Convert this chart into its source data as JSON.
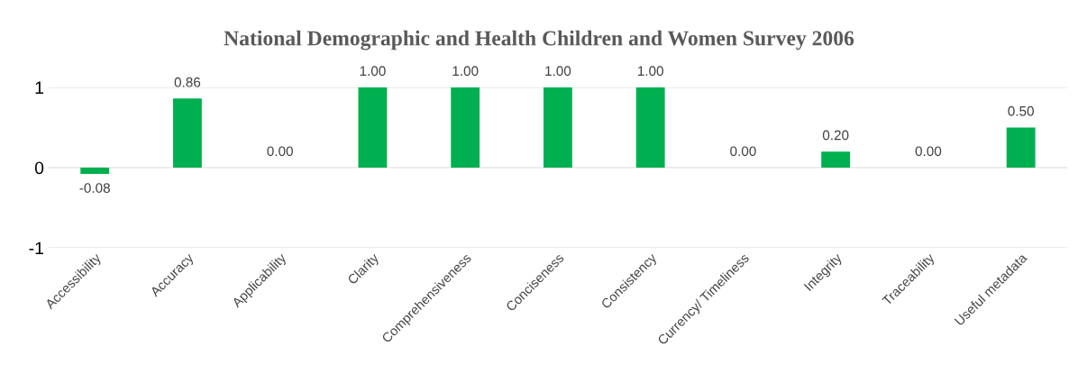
{
  "chart_data": {
    "type": "bar",
    "title": "National Demographic and Health Children and Women Survey 2006",
    "categories": [
      "Accessibility",
      "Accuracy",
      "Applicability",
      "Clarity",
      "Comprehensiveness",
      "Conciseness",
      "Consistency",
      "Currency/ Timeliness",
      "Integrity",
      "Traceability",
      "Useful metadata"
    ],
    "values": [
      -0.08,
      0.86,
      0.0,
      1.0,
      1.0,
      1.0,
      1.0,
      0.0,
      0.2,
      0.0,
      0.5
    ],
    "value_labels": [
      "-0.08",
      "0.86",
      "0.00",
      "1.00",
      "1.00",
      "1.00",
      "1.00",
      "0.00",
      "0.20",
      "0.00",
      "0.50"
    ],
    "color": "#00b050",
    "ylim": [
      -1,
      1
    ],
    "yticks": [
      -1,
      0,
      1
    ],
    "grid": "y"
  }
}
